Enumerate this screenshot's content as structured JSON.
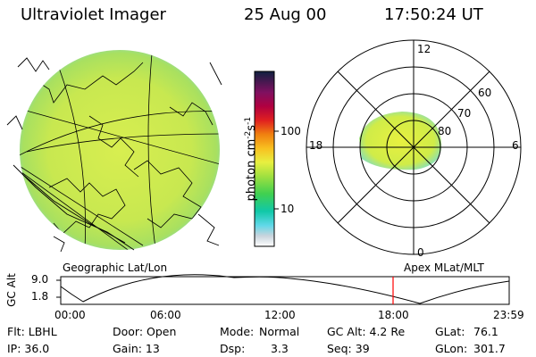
{
  "header": {
    "title": "Ultraviolet Imager",
    "date": "25 Aug 00",
    "time": "17:50:24 UT"
  },
  "colorbar": {
    "unit": "photon cm",
    "unit_sup1": "-2",
    "unit_mid": "s",
    "unit_sup2": "-1",
    "ticks": [
      "100",
      "10"
    ]
  },
  "polar_plot": {
    "mlt_labels": {
      "top": "12",
      "bottom": "0",
      "left": "18",
      "right": "6"
    },
    "lat_labels": [
      "60",
      "70",
      "80"
    ]
  },
  "captions": {
    "geo": "Geographic Lat/Lon",
    "apex": "Apex MLat/MLT"
  },
  "altitude_plot": {
    "ylabel": "GC Alt",
    "yticks": [
      "9.0",
      "1.8"
    ],
    "xticks": [
      "00:00",
      "06:00",
      "12:00",
      "18:00",
      "23:59"
    ],
    "current_time_marker": "17:50",
    "marker_color": "#ff0000"
  },
  "info": {
    "filter": "Flt: LBHL",
    "ip": "IP: 36.0",
    "door": "Door: Open",
    "gain": "Gain: 13",
    "mode_label": "Mode:",
    "mode_value": "Normal",
    "dsp_label": "Dsp:",
    "dsp_value": "3.3",
    "gcalt": "GC Alt: 4.2 Re",
    "seq": "Seq: 39",
    "glat_label": "GLat:",
    "glat_value": "76.1",
    "glon_label": "GLon:",
    "glon_value": "301.7"
  }
}
